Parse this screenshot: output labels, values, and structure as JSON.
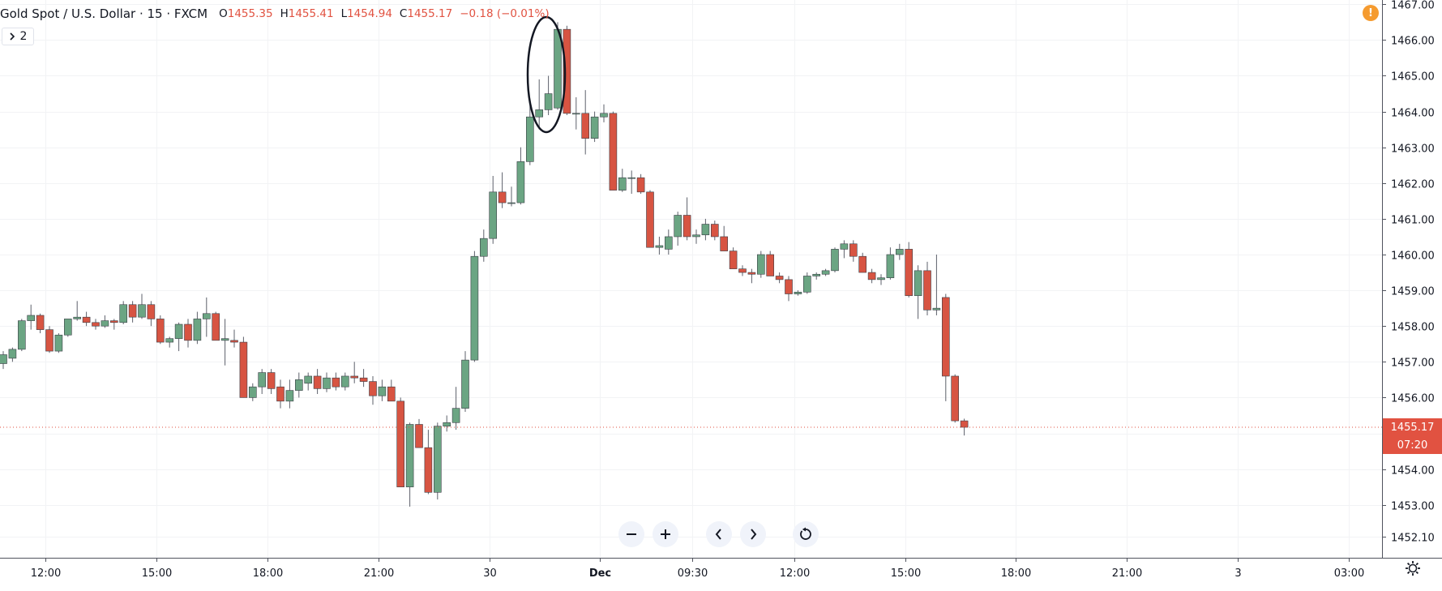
{
  "header": {
    "symbol": "Gold Spot / U.S. Dollar · 15 · FXCM",
    "o_key": "O",
    "o_val": "1455.35",
    "h_key": "H",
    "h_val": "1455.41",
    "l_key": "L",
    "l_val": "1454.94",
    "c_key": "C",
    "c_val": "1455.17",
    "change": "−0.18 (−0.01%)"
  },
  "indicator_toggle": {
    "label": "2"
  },
  "warning_badge": "!",
  "price_tag": {
    "price": "1455.17",
    "countdown": "07:20"
  },
  "colors": {
    "up": "#6ba583",
    "down": "#d75442",
    "wick": "#5d606b",
    "grid": "#f2f3f5",
    "axis": "#131722",
    "price_tag": "#e15241"
  },
  "icons": {
    "zoom_out": "minus-icon",
    "zoom_in": "plus-icon",
    "scroll_left": "chevron-left-icon",
    "scroll_right": "chevron-right-icon",
    "reset": "reset-icon",
    "settings": "gear-icon"
  },
  "chart_data": {
    "type": "candlestick",
    "ylim": [
      1451.52,
      1467.12
    ],
    "y_ticks": [
      1452.1,
      1453.0,
      1454.0,
      1455.0,
      1456.0,
      1457.0,
      1458.0,
      1459.0,
      1460.0,
      1461.0,
      1462.0,
      1463.0,
      1464.0,
      1465.0,
      1466.0,
      1467.0
    ],
    "x_ticks": [
      {
        "bar": 4.6,
        "label": "12:00"
      },
      {
        "bar": 16.6,
        "label": "15:00"
      },
      {
        "bar": 28.6,
        "label": "18:00"
      },
      {
        "bar": 40.6,
        "label": "21:00"
      },
      {
        "bar": 52.6,
        "label": "30"
      },
      {
        "bar": 64.6,
        "label": "Dec"
      },
      {
        "bar": 74.6,
        "label": "09:30"
      },
      {
        "bar": 85.6,
        "label": "12:00"
      },
      {
        "bar": 97.6,
        "label": "15:00"
      },
      {
        "bar": 109.6,
        "label": "18:00"
      },
      {
        "bar": 121.6,
        "label": "21:00"
      },
      {
        "bar": 133.6,
        "label": "3"
      },
      {
        "bar": 145.6,
        "label": "03:00"
      }
    ],
    "ohlc": [
      [
        1456.95,
        1457.3,
        1456.8,
        1457.2
      ],
      [
        1457.1,
        1457.4,
        1457.0,
        1457.35
      ],
      [
        1457.35,
        1458.2,
        1457.3,
        1458.15
      ],
      [
        1458.15,
        1458.6,
        1457.9,
        1458.3
      ],
      [
        1458.3,
        1458.35,
        1457.8,
        1457.9
      ],
      [
        1457.9,
        1458.0,
        1457.25,
        1457.3
      ],
      [
        1457.3,
        1457.8,
        1457.25,
        1457.75
      ],
      [
        1457.75,
        1458.2,
        1457.7,
        1458.2
      ],
      [
        1458.2,
        1458.7,
        1458.15,
        1458.25
      ],
      [
        1458.25,
        1458.4,
        1458.0,
        1458.1
      ],
      [
        1458.1,
        1458.2,
        1457.9,
        1458.0
      ],
      [
        1458.0,
        1458.3,
        1457.95,
        1458.15
      ],
      [
        1458.15,
        1458.2,
        1457.9,
        1458.1
      ],
      [
        1458.1,
        1458.7,
        1458.05,
        1458.6
      ],
      [
        1458.6,
        1458.7,
        1458.1,
        1458.25
      ],
      [
        1458.25,
        1458.9,
        1458.2,
        1458.6
      ],
      [
        1458.6,
        1458.7,
        1458.0,
        1458.2
      ],
      [
        1458.2,
        1458.3,
        1457.5,
        1457.55
      ],
      [
        1457.55,
        1457.7,
        1457.4,
        1457.65
      ],
      [
        1457.65,
        1458.1,
        1457.3,
        1458.05
      ],
      [
        1458.05,
        1458.2,
        1457.4,
        1457.6
      ],
      [
        1457.6,
        1458.4,
        1457.5,
        1458.2
      ],
      [
        1458.2,
        1458.8,
        1457.7,
        1458.35
      ],
      [
        1458.35,
        1458.4,
        1457.6,
        1457.6
      ],
      [
        1457.6,
        1458.2,
        1456.9,
        1457.65
      ],
      [
        1457.6,
        1457.9,
        1457.4,
        1457.55
      ],
      [
        1457.55,
        1457.7,
        1456.0,
        1456.0
      ],
      [
        1456.0,
        1456.4,
        1455.9,
        1456.3
      ],
      [
        1456.3,
        1456.8,
        1456.1,
        1456.7
      ],
      [
        1456.7,
        1456.8,
        1456.1,
        1456.25
      ],
      [
        1456.3,
        1456.5,
        1455.7,
        1455.9
      ],
      [
        1455.9,
        1456.5,
        1455.7,
        1456.2
      ],
      [
        1456.2,
        1456.7,
        1456.0,
        1456.5
      ],
      [
        1456.4,
        1456.7,
        1456.2,
        1456.6
      ],
      [
        1456.6,
        1456.8,
        1456.1,
        1456.25
      ],
      [
        1456.25,
        1456.7,
        1456.15,
        1456.55
      ],
      [
        1456.55,
        1456.7,
        1456.2,
        1456.3
      ],
      [
        1456.3,
        1456.7,
        1456.2,
        1456.6
      ],
      [
        1456.6,
        1457.0,
        1456.4,
        1456.55
      ],
      [
        1456.55,
        1456.8,
        1456.3,
        1456.45
      ],
      [
        1456.45,
        1456.6,
        1455.8,
        1456.05
      ],
      [
        1456.05,
        1456.5,
        1455.9,
        1456.3
      ],
      [
        1456.3,
        1456.5,
        1455.9,
        1455.9
      ],
      [
        1455.9,
        1456.0,
        1453.5,
        1453.5
      ],
      [
        1453.5,
        1455.3,
        1452.95,
        1455.25
      ],
      [
        1455.25,
        1455.4,
        1454.6,
        1454.6
      ],
      [
        1454.6,
        1455.1,
        1453.3,
        1453.35
      ],
      [
        1453.35,
        1455.3,
        1453.15,
        1455.2
      ],
      [
        1455.2,
        1455.5,
        1455.05,
        1455.3
      ],
      [
        1455.3,
        1456.3,
        1455.1,
        1455.7
      ],
      [
        1455.7,
        1457.3,
        1455.6,
        1457.05
      ],
      [
        1457.05,
        1460.1,
        1457.0,
        1459.95
      ],
      [
        1459.95,
        1460.7,
        1459.8,
        1460.45
      ],
      [
        1460.45,
        1462.2,
        1460.3,
        1461.75
      ],
      [
        1461.75,
        1462.3,
        1461.3,
        1461.45
      ],
      [
        1461.45,
        1461.9,
        1461.35,
        1461.45
      ],
      [
        1461.45,
        1463.0,
        1461.4,
        1462.6
      ],
      [
        1462.6,
        1464.2,
        1462.5,
        1463.85
      ],
      [
        1463.85,
        1464.9,
        1463.5,
        1464.05
      ],
      [
        1464.05,
        1465.0,
        1463.9,
        1464.5
      ],
      [
        1464.1,
        1466.5,
        1464.05,
        1466.3
      ],
      [
        1466.3,
        1466.4,
        1463.9,
        1463.95
      ],
      [
        1463.95,
        1464.4,
        1463.5,
        1463.95
      ],
      [
        1463.95,
        1464.6,
        1462.8,
        1463.25
      ],
      [
        1463.25,
        1464.0,
        1463.15,
        1463.85
      ],
      [
        1463.85,
        1464.2,
        1463.7,
        1463.95
      ],
      [
        1463.95,
        1464.0,
        1461.8,
        1461.8
      ],
      [
        1461.8,
        1462.4,
        1461.75,
        1462.15
      ],
      [
        1462.15,
        1462.35,
        1461.7,
        1462.15
      ],
      [
        1462.15,
        1462.25,
        1461.7,
        1461.75
      ],
      [
        1461.75,
        1461.8,
        1460.2,
        1460.2
      ],
      [
        1460.2,
        1460.5,
        1460.0,
        1460.25
      ],
      [
        1460.15,
        1460.7,
        1460.0,
        1460.5
      ],
      [
        1460.5,
        1461.2,
        1460.25,
        1461.1
      ],
      [
        1461.1,
        1461.6,
        1460.4,
        1460.5
      ],
      [
        1460.5,
        1460.7,
        1460.3,
        1460.55
      ],
      [
        1460.55,
        1461.0,
        1460.4,
        1460.85
      ],
      [
        1460.85,
        1460.95,
        1460.4,
        1460.5
      ],
      [
        1460.5,
        1460.8,
        1460.1,
        1460.1
      ],
      [
        1460.1,
        1460.2,
        1459.6,
        1459.6
      ],
      [
        1459.6,
        1459.7,
        1459.4,
        1459.5
      ],
      [
        1459.5,
        1459.6,
        1459.2,
        1459.45
      ],
      [
        1459.45,
        1460.1,
        1459.35,
        1460.0
      ],
      [
        1460.0,
        1460.1,
        1459.4,
        1459.4
      ],
      [
        1459.4,
        1459.5,
        1459.2,
        1459.3
      ],
      [
        1459.3,
        1459.4,
        1458.7,
        1458.9
      ],
      [
        1458.9,
        1459.0,
        1458.85,
        1458.95
      ],
      [
        1458.95,
        1459.5,
        1458.9,
        1459.4
      ],
      [
        1459.4,
        1459.5,
        1459.3,
        1459.45
      ],
      [
        1459.45,
        1459.6,
        1459.4,
        1459.55
      ],
      [
        1459.55,
        1460.2,
        1459.5,
        1460.15
      ],
      [
        1460.15,
        1460.4,
        1459.9,
        1460.3
      ],
      [
        1460.3,
        1460.4,
        1459.8,
        1459.95
      ],
      [
        1459.95,
        1460.05,
        1459.5,
        1459.5
      ],
      [
        1459.5,
        1459.6,
        1459.2,
        1459.3
      ],
      [
        1459.3,
        1459.45,
        1459.15,
        1459.35
      ],
      [
        1459.35,
        1460.2,
        1459.3,
        1460.0
      ],
      [
        1460.0,
        1460.3,
        1459.85,
        1460.15
      ],
      [
        1460.15,
        1460.35,
        1458.8,
        1458.85
      ],
      [
        1458.85,
        1459.7,
        1458.2,
        1459.55
      ],
      [
        1459.55,
        1459.8,
        1458.3,
        1458.45
      ],
      [
        1458.45,
        1460.0,
        1458.3,
        1458.5
      ],
      [
        1458.8,
        1458.9,
        1455.9,
        1456.6
      ],
      [
        1456.6,
        1456.65,
        1455.3,
        1455.35
      ],
      [
        1455.35,
        1455.41,
        1454.94,
        1455.17
      ]
    ]
  }
}
